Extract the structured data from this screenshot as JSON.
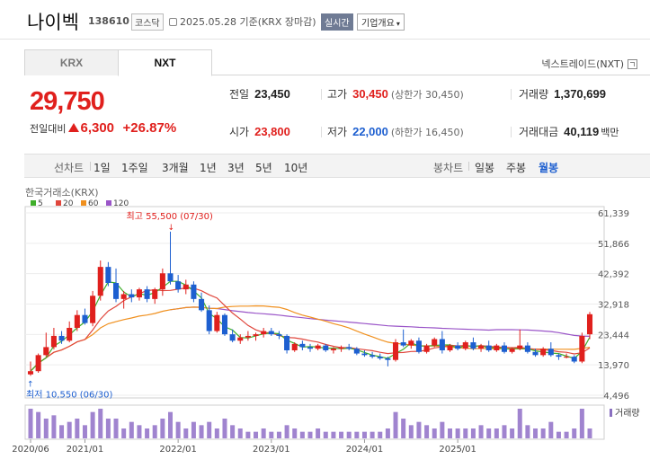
{
  "header": {
    "name": "나이벡",
    "code": "138610",
    "market": "코스닥",
    "date": "2025.05.28 기준(KRX 장마감)",
    "realtime_label": "실시간",
    "company_label": "기업개요"
  },
  "tabs": [
    {
      "label": "KRX"
    },
    {
      "label": "NXT"
    }
  ],
  "nextrade_label": "넥스트레이드(NXT)",
  "quote": {
    "price": "29,750",
    "change_label": "전일대비",
    "change": "6,300",
    "change_pct": "+26.87%"
  },
  "stats": {
    "prev_label": "전일",
    "prev": "23,450",
    "high_label": "고가",
    "high": "30,450",
    "upper_limit": "(상한가 30,450)",
    "volume_label": "거래량",
    "volume": "1,370,699",
    "open_label": "시가",
    "open": "23,800",
    "low_label": "저가",
    "low": "22,000",
    "lower_limit": "(하한가 16,450)",
    "amount_label": "거래대금",
    "amount": "40,119",
    "amount_unit": "백만"
  },
  "period_bar": {
    "line_label": "선차트",
    "periods": [
      "1일",
      "1주일",
      "3개월",
      "1년",
      "3년",
      "5년",
      "10년"
    ],
    "candle_label": "봉차트",
    "candles": [
      "일봉",
      "주봉",
      "월봉"
    ],
    "active_candle": "월봉"
  },
  "colors": {
    "up": "#e0201d",
    "down": "#1d5fd0",
    "ma5": "#3fae2a",
    "ma20": "#e0463c",
    "ma60": "#f0901e",
    "ma120": "#9a55c8"
  },
  "chart_data": {
    "type": "candlestick",
    "source_label": "한국거래소(KRX)",
    "legend": [
      {
        "name": "5",
        "color": "#3fae2a"
      },
      {
        "name": "20",
        "color": "#e0463c"
      },
      {
        "name": "60",
        "color": "#f0901e"
      },
      {
        "name": "120",
        "color": "#9a55c8"
      }
    ],
    "y_ticks": [
      "61,339",
      "51,866",
      "42,392",
      "32,918",
      "23,444",
      "13,970",
      "4,496"
    ],
    "y_tick_values": [
      61339,
      51866,
      42392,
      32918,
      23444,
      13970,
      4496
    ],
    "x_ticks": [
      "2020/06",
      "2021/01",
      "2022/01",
      "2023/01",
      "2024/01",
      "2025/01"
    ],
    "max_label": "최고 55,500 (07/30)",
    "min_label": "최저 10,550 (06/30)",
    "volume_label": "거래량",
    "candles": [
      [
        11000,
        15000,
        10550,
        12000
      ],
      [
        12000,
        17500,
        11500,
        17000
      ],
      [
        17000,
        24000,
        16500,
        19500
      ],
      [
        19500,
        25500,
        18800,
        23000
      ],
      [
        23000,
        24500,
        20500,
        21500
      ],
      [
        21500,
        27500,
        21000,
        25500
      ],
      [
        25500,
        31000,
        24500,
        29500
      ],
      [
        29500,
        31500,
        26500,
        27000
      ],
      [
        27000,
        37000,
        26000,
        35500
      ],
      [
        35500,
        46500,
        34000,
        44500
      ],
      [
        44500,
        46000,
        38500,
        39500
      ],
      [
        39500,
        44000,
        33500,
        34500
      ],
      [
        34500,
        37000,
        31500,
        36000
      ],
      [
        36000,
        37500,
        33500,
        35000
      ],
      [
        35000,
        38000,
        34000,
        37500
      ],
      [
        37500,
        38500,
        33500,
        34500
      ],
      [
        34500,
        38000,
        33000,
        37500
      ],
      [
        37500,
        44000,
        35500,
        42500
      ],
      [
        42500,
        55500,
        39000,
        40000
      ],
      [
        40000,
        42000,
        36500,
        37500
      ],
      [
        37500,
        40500,
        36000,
        39000
      ],
      [
        39000,
        40000,
        33500,
        34500
      ],
      [
        34500,
        36500,
        30500,
        31000
      ],
      [
        31000,
        32500,
        23500,
        24500
      ],
      [
        24500,
        30500,
        24000,
        29500
      ],
      [
        29500,
        30000,
        23000,
        23500
      ],
      [
        23500,
        25000,
        21000,
        21500
      ],
      [
        21500,
        23500,
        20500,
        22500
      ],
      [
        22500,
        24500,
        21500,
        23000
      ],
      [
        23000,
        24000,
        21500,
        23500
      ],
      [
        23500,
        25500,
        22500,
        24500
      ],
      [
        24500,
        25500,
        23000,
        23500
      ],
      [
        23500,
        24500,
        22000,
        23000
      ],
      [
        23000,
        23500,
        17500,
        18500
      ],
      [
        18500,
        21000,
        18000,
        20500
      ],
      [
        20500,
        21500,
        18500,
        19500
      ],
      [
        19500,
        20500,
        18000,
        19000
      ],
      [
        19000,
        20500,
        18500,
        20000
      ],
      [
        20000,
        20500,
        18000,
        18500
      ],
      [
        18500,
        19500,
        17500,
        19000
      ],
      [
        19000,
        20000,
        18000,
        19500
      ],
      [
        19500,
        20500,
        18500,
        19000
      ],
      [
        19000,
        19500,
        17000,
        17500
      ],
      [
        17500,
        18500,
        16500,
        17000
      ],
      [
        17000,
        18000,
        16000,
        16500
      ],
      [
        16500,
        17500,
        15500,
        16000
      ],
      [
        16000,
        16500,
        13500,
        15500
      ],
      [
        15500,
        22000,
        15000,
        21000
      ],
      [
        21000,
        25000,
        19500,
        20000
      ],
      [
        20000,
        22000,
        19000,
        21500
      ],
      [
        21500,
        22500,
        17500,
        18000
      ],
      [
        18000,
        20500,
        17500,
        20000
      ],
      [
        20000,
        22500,
        19500,
        22000
      ],
      [
        22000,
        24500,
        17500,
        18500
      ],
      [
        18500,
        20500,
        18000,
        20000
      ],
      [
        20000,
        21000,
        18500,
        19000
      ],
      [
        19000,
        21500,
        18500,
        21000
      ],
      [
        21000,
        22500,
        18500,
        19000
      ],
      [
        19000,
        20500,
        18000,
        20000
      ],
      [
        20000,
        21500,
        18000,
        18500
      ],
      [
        18500,
        20500,
        18000,
        20000
      ],
      [
        20000,
        21000,
        17500,
        18000
      ],
      [
        18000,
        19500,
        17500,
        19000
      ],
      [
        19000,
        25000,
        18500,
        20000
      ],
      [
        20000,
        21000,
        17500,
        18000
      ],
      [
        18000,
        19000,
        16500,
        17000
      ],
      [
        17000,
        19500,
        16500,
        19000
      ],
      [
        19000,
        21000,
        16500,
        17000
      ],
      [
        17000,
        17500,
        15500,
        16500
      ],
      [
        16500,
        17500,
        16000,
        16500
      ],
      [
        16500,
        17000,
        14500,
        15000
      ],
      [
        15000,
        24000,
        14500,
        23000
      ],
      [
        23500,
        30450,
        22000,
        29750
      ]
    ],
    "volume": [
      9,
      8,
      6,
      7,
      4,
      5,
      6,
      4,
      8,
      9,
      6,
      6,
      3,
      5,
      4,
      3,
      4,
      6,
      8,
      5,
      3,
      5,
      4,
      5,
      3,
      6,
      4,
      3,
      2,
      2,
      3,
      2,
      2,
      4,
      3,
      2,
      2,
      3,
      2,
      2,
      2,
      2,
      2,
      2,
      2,
      2,
      3,
      8,
      6,
      4,
      5,
      4,
      3,
      5,
      3,
      3,
      3,
      3,
      4,
      3,
      3,
      4,
      3,
      9,
      4,
      3,
      3,
      5,
      2,
      2,
      3,
      9,
      3
    ]
  }
}
